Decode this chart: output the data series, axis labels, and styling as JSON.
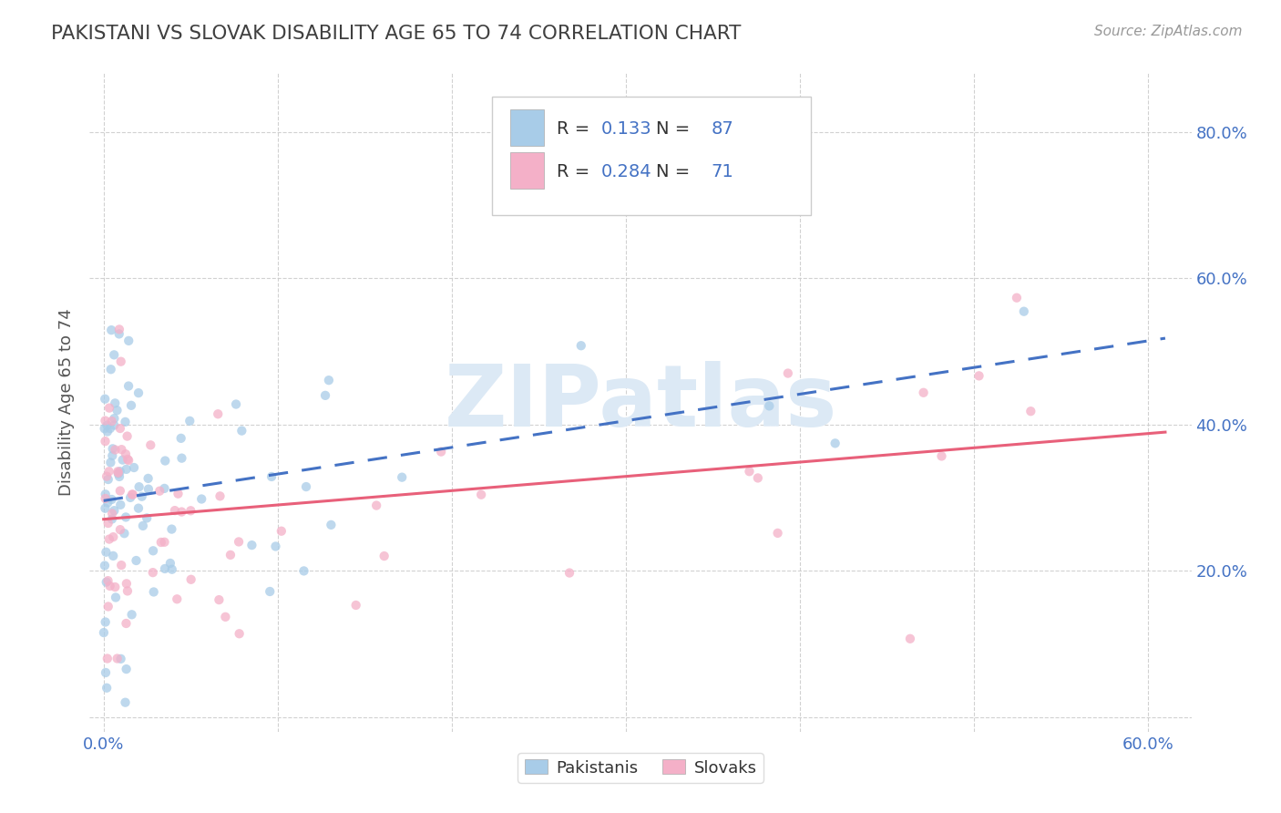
{
  "title": "PAKISTANI VS SLOVAK DISABILITY AGE 65 TO 74 CORRELATION CHART",
  "source": "Source: ZipAtlas.com",
  "ylabel": "Disability Age 65 to 74",
  "xlim": [
    -0.008,
    0.625
  ],
  "ylim": [
    -0.02,
    0.88
  ],
  "pakistani_R": 0.133,
  "pakistani_N": 87,
  "slovak_R": 0.284,
  "slovak_N": 71,
  "pakistani_color": "#a8cce8",
  "slovak_color": "#f4b0c8",
  "pakistani_line_color": "#4472c4",
  "slovak_line_color": "#e8607a",
  "background_color": "#ffffff",
  "grid_color": "#cccccc",
  "title_color": "#404040",
  "watermark_color": "#dce9f5",
  "watermark_text": "ZIPatlas",
  "axis_label_color": "#4472c4",
  "legend_label_color": "#4472c4"
}
